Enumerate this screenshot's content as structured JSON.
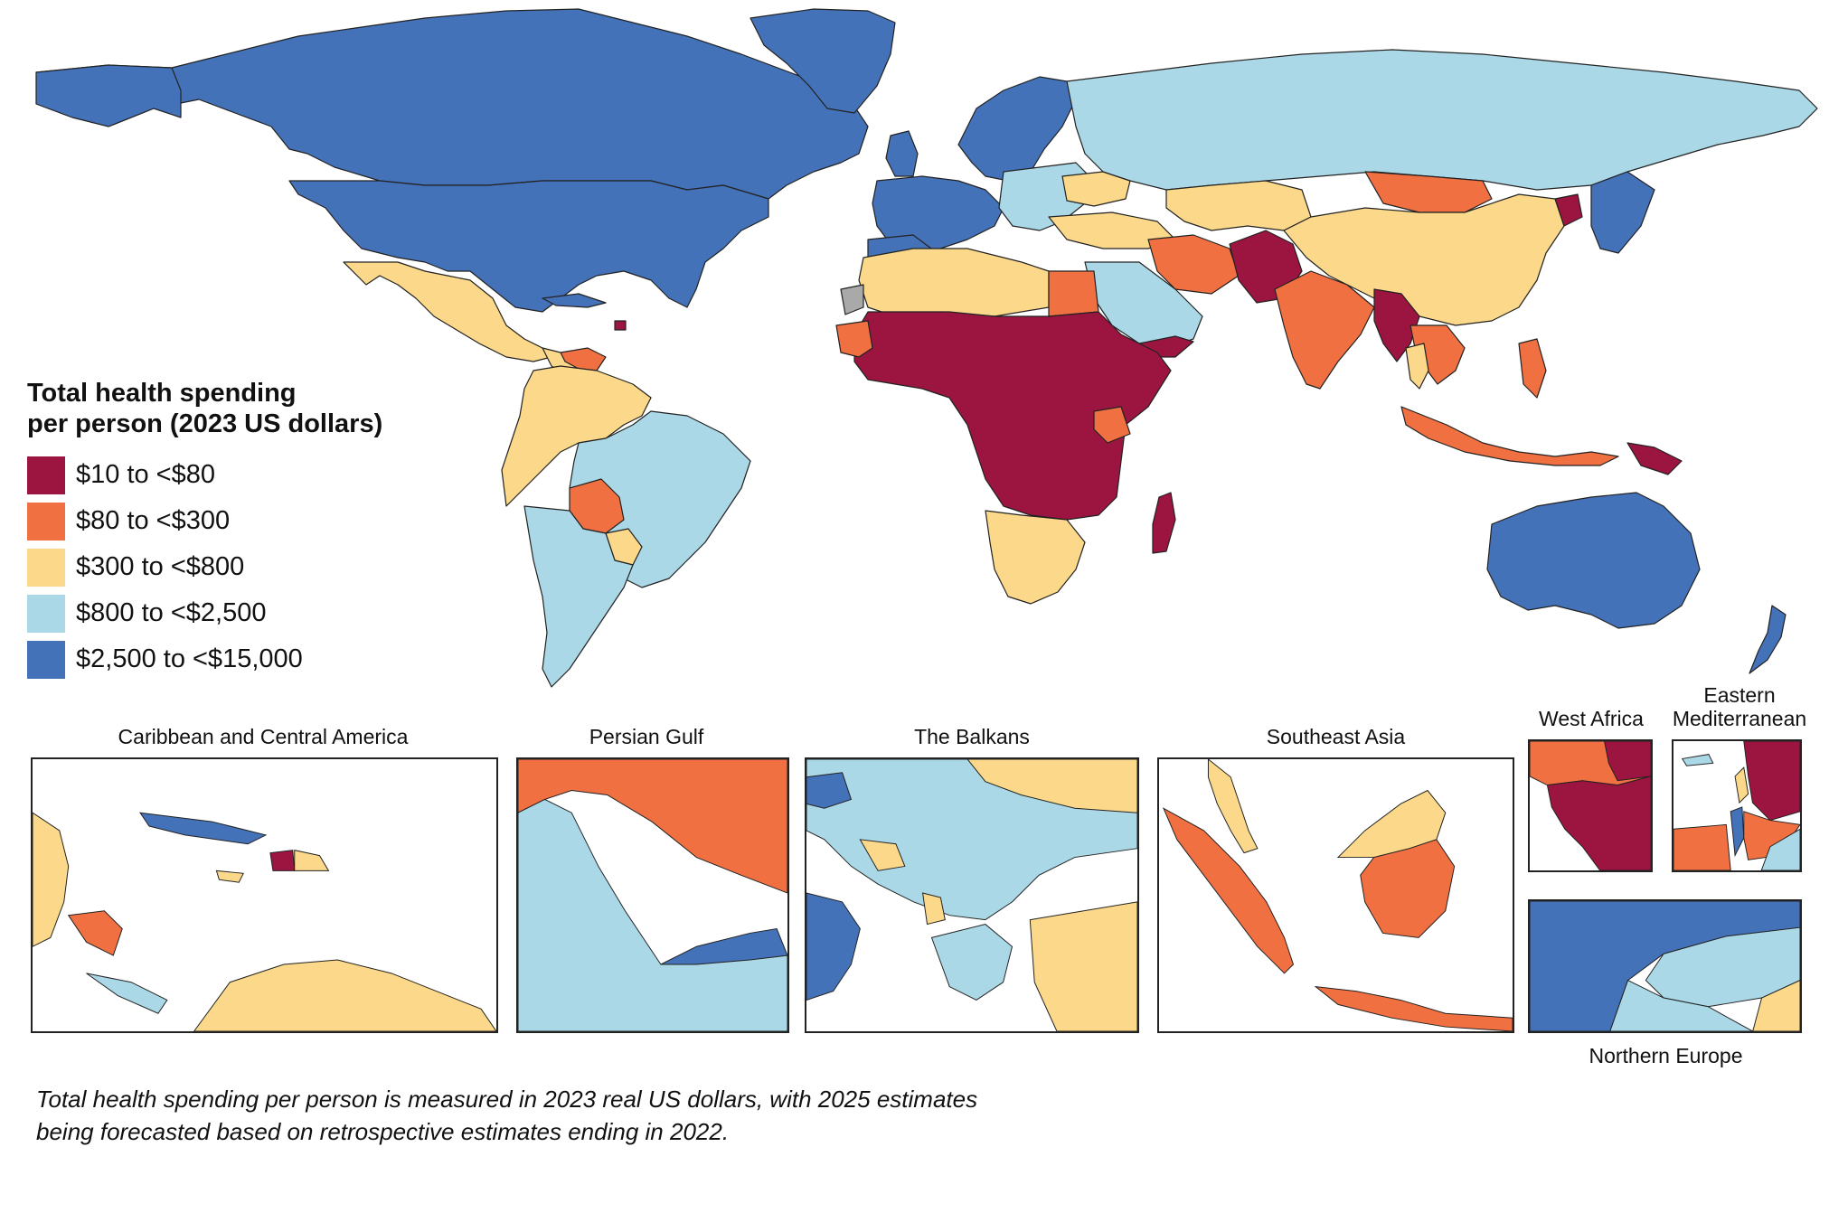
{
  "colors": {
    "c10_80": "#9b1540",
    "c80_300": "#f07042",
    "c300_800": "#fcd98a",
    "c800_2500": "#abd8e6",
    "c2500_15000": "#4472b8",
    "no_data": "#a9a9a9",
    "border": "#222222",
    "water": "#ffffff"
  },
  "legend": {
    "title_line1": "Total health spending",
    "title_line2": "per person (2023 US dollars)",
    "items": [
      {
        "label": "$10 to <$80",
        "color": "#9b1540"
      },
      {
        "label": "$80 to <$300",
        "color": "#f07042"
      },
      {
        "label": "$300 to <$800",
        "color": "#fcd98a"
      },
      {
        "label": "$800 to <$2,500",
        "color": "#abd8e6"
      },
      {
        "label": "$2,500 to <$15,000",
        "color": "#4472b8"
      }
    ]
  },
  "insets": {
    "caribbean": "Caribbean and Central America",
    "persian_gulf": "Persian Gulf",
    "balkans": "The Balkans",
    "southeast_asia": "Southeast Asia",
    "west_africa": "West Africa",
    "eastern_med_line1": "Eastern",
    "eastern_med_line2": "Mediterranean",
    "northern_europe": "Northern Europe"
  },
  "footnote": {
    "line1": "Total health spending per person is measured in 2023 real US dollars, with 2025 estimates",
    "line2": "being forecasted based on retrospective estimates ending in 2022."
  }
}
